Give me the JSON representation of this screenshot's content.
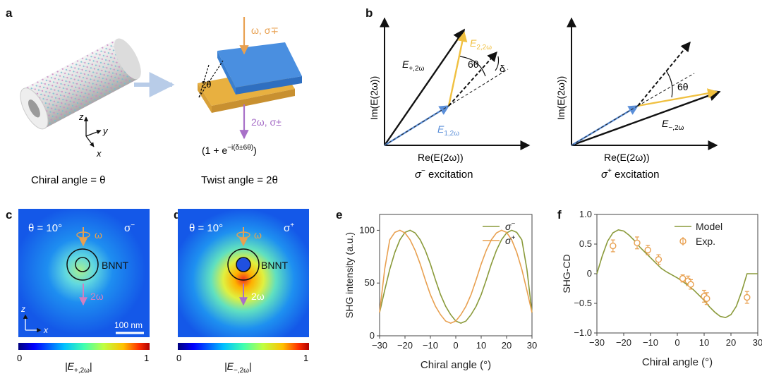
{
  "panel_labels": {
    "a": "a",
    "b": "b",
    "c": "c",
    "d": "d",
    "e": "e",
    "f": "f"
  },
  "panel_a": {
    "axis_z": "z",
    "axis_y": "y",
    "axis_x": "x",
    "caption_left": "Chiral angle = θ",
    "caption_right": "Twist angle = 2θ",
    "incident_label": "ω, σ∓",
    "emitted_label": "2ω, σ±",
    "twist_mark": "2θ",
    "phase_formula_main": "(1 + e",
    "phase_formula_sup": "−i(δ±6θ)",
    "phase_formula_close": ")"
  },
  "panel_b_left": {
    "xlabel": "Re(E(2ω))",
    "ylabel": "Im(E(2ω))",
    "vec_plus_main": "E",
    "vec_plus_sub": "+,2ω",
    "vec_22_main": "E",
    "vec_22_sub": "2,2ω",
    "vec_12_main": "E",
    "vec_12_sub": "1,2ω",
    "angle_6theta": "6θ",
    "angle_delta": "δ",
    "excitation_sym": "σ",
    "excitation_sup": "−",
    "excitation_text": " excitation"
  },
  "panel_b_right": {
    "xlabel": "Re(E(2ω))",
    "ylabel": "Im(E(2ω))",
    "vec_minus_main": "E",
    "vec_minus_sub": "−,2ω",
    "angle_6theta": "6θ",
    "excitation_sym": "σ",
    "excitation_sup": "+",
    "excitation_text": " excitation"
  },
  "panel_c": {
    "theta": "θ = 10°",
    "polarization": "σ",
    "polarization_sup": "−",
    "omega": "ω",
    "two_omega": "2ω",
    "bnnt": "BNNT",
    "scale_bar": "100 nm",
    "axis_z": "z",
    "axis_x": "x",
    "cbar_min": "0",
    "cbar_max": "1",
    "cbar_label_main": "|E",
    "cbar_label_sub": "+,2ω",
    "cbar_label_end": "|"
  },
  "panel_d": {
    "theta": "θ = 10°",
    "polarization": "σ",
    "polarization_sup": "+",
    "omega": "ω",
    "two_omega": "2ω",
    "bnnt": "BNNT",
    "cbar_min": "0",
    "cbar_max": "1",
    "cbar_label_main": "|E",
    "cbar_label_sub": "−,2ω",
    "cbar_label_end": "|"
  },
  "colors": {
    "green": "#8a9a3a",
    "orange": "#e8a050",
    "blue_arrow": "#5b8fd9",
    "gold": "#f0c040",
    "purple": "#a870c8",
    "cyan_dot": "#70c0d0",
    "pink": "#d080c0",
    "top_layer": "#4a8fe0",
    "bottom_layer": "#e8b040"
  },
  "chart_data": [
    {
      "type": "line",
      "title": "",
      "xlabel": "Chiral angle (°)",
      "ylabel": "SHG intensity (a.u.)",
      "xlim": [
        -30,
        30
      ],
      "ylim": [
        0,
        115
      ],
      "xticks": [
        "−30",
        "−20",
        "−10",
        "0",
        "10",
        "20",
        "30"
      ],
      "yticks": [
        "0",
        "50",
        "100"
      ],
      "legend": "top-right",
      "series": [
        {
          "name": "σ",
          "name_sup": "−",
          "color": "#8a9a3a",
          "x": [
            -30,
            -28,
            -26,
            -24,
            -22,
            -20,
            -18,
            -16,
            -14,
            -12,
            -10,
            -8,
            -6,
            -4,
            -2,
            0,
            2,
            4,
            6,
            8,
            10,
            12,
            14,
            16,
            18,
            20,
            22,
            24,
            26,
            28,
            30
          ],
          "y": [
            22,
            43,
            63,
            79,
            91,
            98,
            100,
            97.5,
            91,
            81,
            68,
            53,
            39,
            28,
            20,
            14,
            12,
            14,
            20,
            28,
            39,
            53,
            68,
            81,
            91,
            97.5,
            100,
            98,
            91,
            63,
            22
          ]
        },
        {
          "name": "σ",
          "name_sup": "+",
          "color": "#e8a050",
          "x": [
            -30,
            -28,
            -26,
            -24,
            -22,
            -20,
            -18,
            -16,
            -14,
            -12,
            -10,
            -8,
            -6,
            -4,
            -2,
            0,
            2,
            4,
            6,
            8,
            10,
            12,
            14,
            16,
            18,
            20,
            22,
            24,
            26,
            28,
            30
          ],
          "y": [
            22,
            63,
            91,
            98,
            100,
            97.5,
            91,
            81,
            68,
            53,
            39,
            28,
            20,
            14,
            12,
            14,
            20,
            28,
            39,
            53,
            68,
            81,
            91,
            97.5,
            100,
            98,
            91,
            79,
            63,
            43,
            22
          ]
        }
      ]
    },
    {
      "type": "scatter",
      "title": "",
      "xlabel": "Chiral angle (°)",
      "ylabel": "SHG-CD",
      "xlim": [
        -30,
        30
      ],
      "ylim": [
        -1.0,
        1.0
      ],
      "xticks": [
        "−30",
        "−20",
        "−10",
        "0",
        "10",
        "20",
        "30"
      ],
      "yticks": [
        "−1.0",
        "−0.5",
        "0",
        "0.5",
        "1.0"
      ],
      "legend": "top-right",
      "series": [
        {
          "name": "Model",
          "kind": "line",
          "color": "#8a9a3a",
          "x": [
            -30,
            -28,
            -26,
            -24,
            -22,
            -20,
            -18,
            -16,
            -14,
            -12,
            -10,
            -8,
            -6,
            -4,
            -2,
            0,
            2,
            4,
            6,
            8,
            10,
            12,
            14,
            16,
            18,
            20,
            22,
            24,
            26,
            28,
            30
          ],
          "y": [
            0,
            0.3,
            0.55,
            0.69,
            0.74,
            0.72,
            0.65,
            0.56,
            0.45,
            0.36,
            0.27,
            0.18,
            0.09,
            0.03,
            -0.02,
            -0.07,
            -0.13,
            -0.2,
            -0.27,
            -0.36,
            -0.45,
            -0.56,
            -0.65,
            -0.72,
            -0.74,
            -0.69,
            -0.55,
            -0.3,
            0,
            0,
            0
          ]
        },
        {
          "name": "Exp.",
          "kind": "scatter",
          "color": "#e8a050",
          "x": [
            -24,
            -15,
            -11,
            -7,
            2,
            4,
            5,
            10,
            11,
            26
          ],
          "y": [
            0.47,
            0.52,
            0.4,
            0.24,
            -0.08,
            -0.12,
            -0.18,
            -0.38,
            -0.42,
            -0.4
          ],
          "err": [
            0.1,
            0.1,
            0.08,
            0.08,
            0.06,
            0.08,
            0.08,
            0.1,
            0.1,
            0.1
          ]
        }
      ]
    }
  ]
}
